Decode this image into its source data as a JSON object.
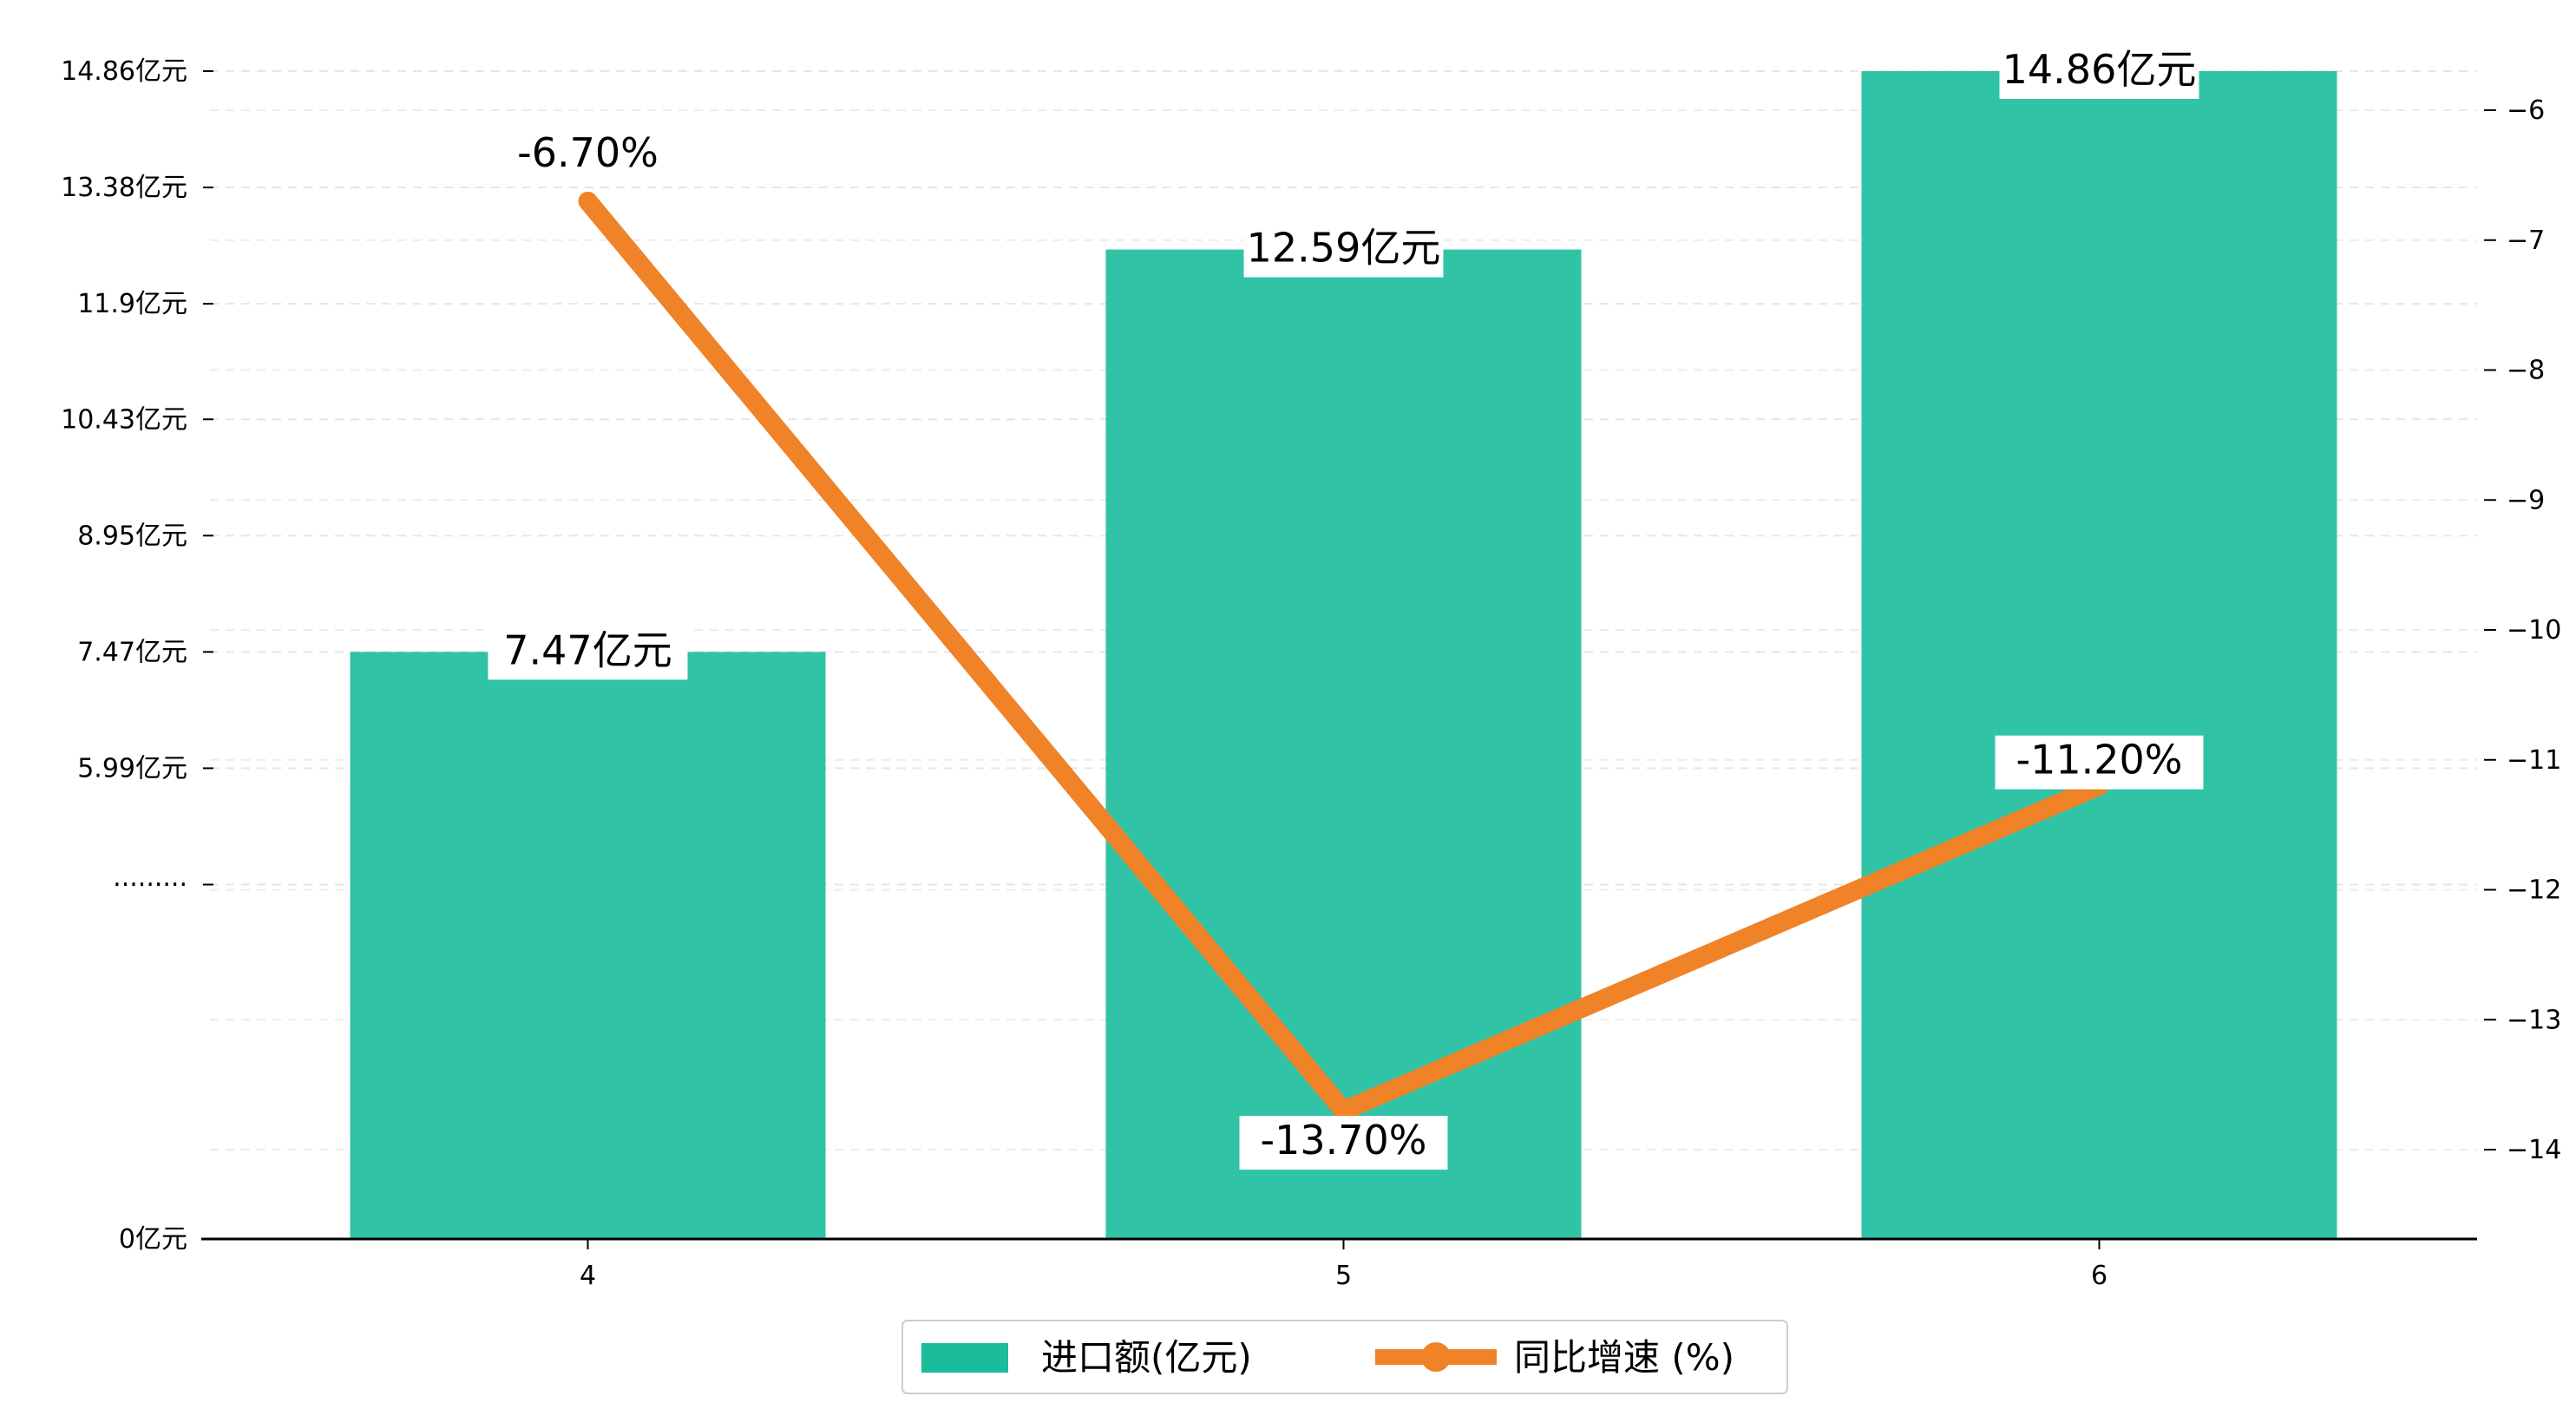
{
  "chart_data": {
    "type": "bar+line",
    "categories": [
      "4",
      "5",
      "6"
    ],
    "bar_series": {
      "name": "进口额(亿元)",
      "values": [
        7.47,
        12.59,
        14.86
      ],
      "labels": [
        "7.47亿元",
        "12.59亿元",
        "14.86亿元"
      ],
      "color": "#1ABC9C"
    },
    "line_series": {
      "name": "同比增速 (%)",
      "values": [
        -6.7,
        -13.7,
        -11.2
      ],
      "labels": [
        "-6.70%",
        "-13.70%",
        "-11.20%"
      ],
      "color": "#F08228"
    },
    "left_axis": {
      "ticks": [
        0,
        4.51,
        5.99,
        7.47,
        8.95,
        10.43,
        11.9,
        13.38,
        14.86
      ],
      "tick_labels": [
        "0亿元",
        "·········",
        "5.99亿元",
        "7.47亿元",
        "8.95亿元",
        "10.43亿元",
        "11.9亿元",
        "13.38亿元",
        "14.86亿元"
      ]
    },
    "right_axis": {
      "range": [
        -14.7,
        -5.4
      ],
      "ticks": [
        -14,
        -13,
        -12,
        -11,
        -10,
        -9,
        -8,
        -7,
        -6
      ],
      "tick_labels": [
        "−14",
        "−13",
        "−12",
        "−11",
        "−10",
        "−9",
        "−8",
        "−7",
        "−6"
      ]
    },
    "grid": "horizontal dashed",
    "legend_position": "bottom-center"
  }
}
